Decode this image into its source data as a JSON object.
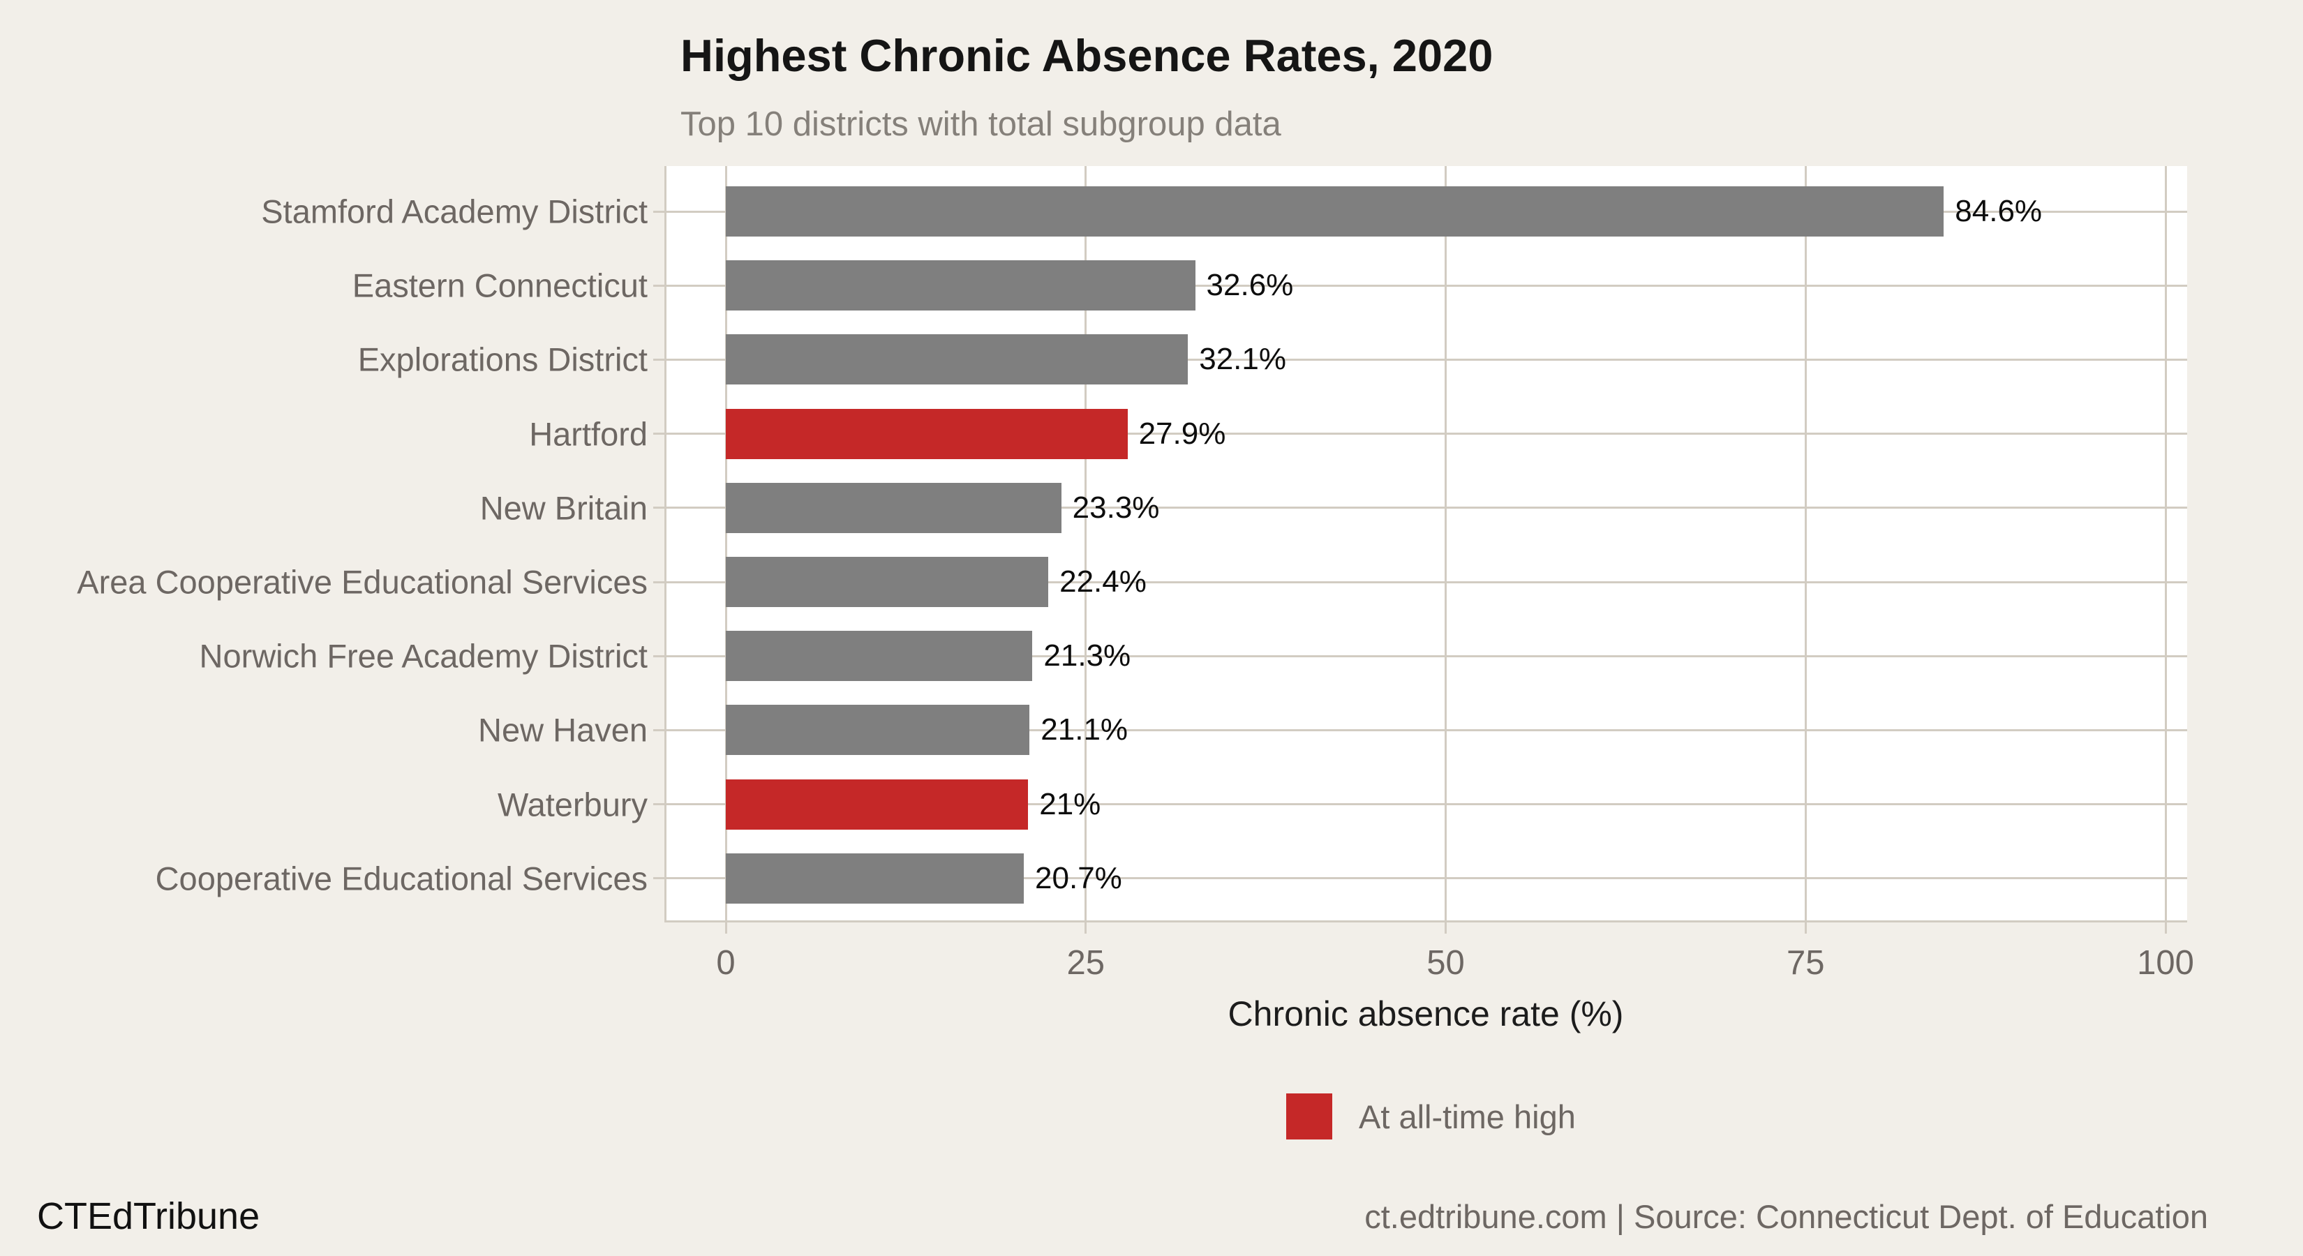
{
  "header": {
    "title": "Highest Chronic Absence Rates, 2020",
    "subtitle": "Top 10 districts with total subgroup data"
  },
  "chart_data": {
    "type": "bar",
    "orientation": "horizontal",
    "title": "Highest Chronic Absence Rates, 2020",
    "subtitle": "Top 10 districts with total subgroup data",
    "categories": [
      "Stamford Academy District",
      "Eastern Connecticut",
      "Explorations District",
      "Hartford",
      "New Britain",
      "Area Cooperative Educational Services",
      "Norwich Free Academy District",
      "New Haven",
      "Waterbury",
      "Cooperative Educational Services"
    ],
    "values": [
      84.6,
      32.6,
      32.1,
      27.9,
      23.3,
      22.4,
      21.3,
      21.1,
      21,
      20.7
    ],
    "value_labels": [
      "84.6%",
      "32.6%",
      "32.1%",
      "27.9%",
      "23.3%",
      "22.4%",
      "21.3%",
      "21.1%",
      "21%",
      "20.7%"
    ],
    "highlighted": [
      false,
      false,
      false,
      true,
      false,
      false,
      false,
      false,
      true,
      false
    ],
    "xlabel": "Chronic absence rate (%)",
    "ylabel": "",
    "x_ticks": [
      0,
      25,
      50,
      75,
      100
    ],
    "xlim": [
      0,
      100
    ],
    "grid": true,
    "legend_position": "bottom",
    "bar_color": "#7f7f7f",
    "highlight_color": "#c52828",
    "plot_background": "#ffffff",
    "page_background": "#f2efe9",
    "gridline_color": "#d2ccc2"
  },
  "legend": {
    "swatch_color": "#c52828",
    "label": "At all-time high"
  },
  "footer": {
    "brand": "CTEdTribune",
    "source": "ct.edtribune.com | Source: Connecticut Dept. of Education"
  }
}
